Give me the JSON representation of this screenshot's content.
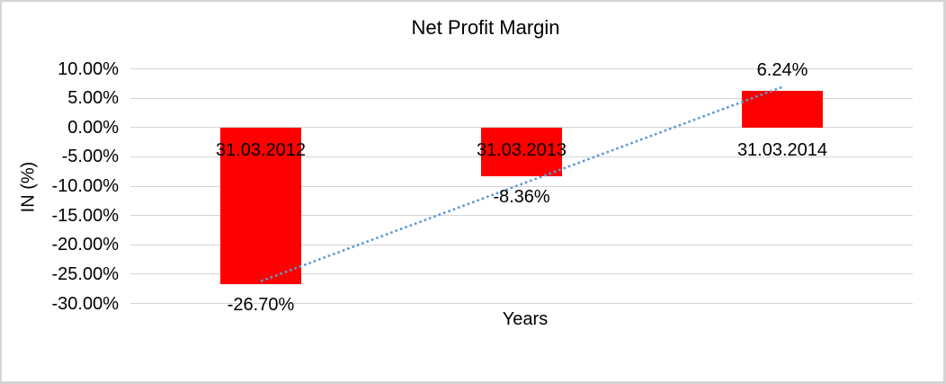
{
  "chart_data": {
    "type": "bar",
    "title": "Net Profit Margin",
    "xlabel": "Years",
    "ylabel": "IN (%)",
    "categories": [
      "31.03.2012",
      "31.03.2013",
      "31.03.2014"
    ],
    "values": [
      -26.7,
      -8.36,
      6.24
    ],
    "value_labels": [
      "-26.70%",
      "-8.36%",
      "6.24%"
    ],
    "ytick_labels": [
      "10.00%",
      "5.00%",
      "0.00%",
      "-5.00%",
      "-10.00%",
      "-15.00%",
      "-20.00%",
      "-25.00%",
      "-30.00%"
    ],
    "ytick_values": [
      10,
      5,
      0,
      -5,
      -10,
      -15,
      -20,
      -25,
      -30
    ],
    "ylim": [
      -30,
      10
    ],
    "grid": true,
    "legend": false,
    "bar_color": "#ff0000",
    "gridline_color": "#d4d4d4",
    "text_color": "#000000",
    "trendline": {
      "type": "linear",
      "style": "dotted",
      "color": "#5b9bd5",
      "start_value": -26.2,
      "end_value": 6.9
    }
  }
}
